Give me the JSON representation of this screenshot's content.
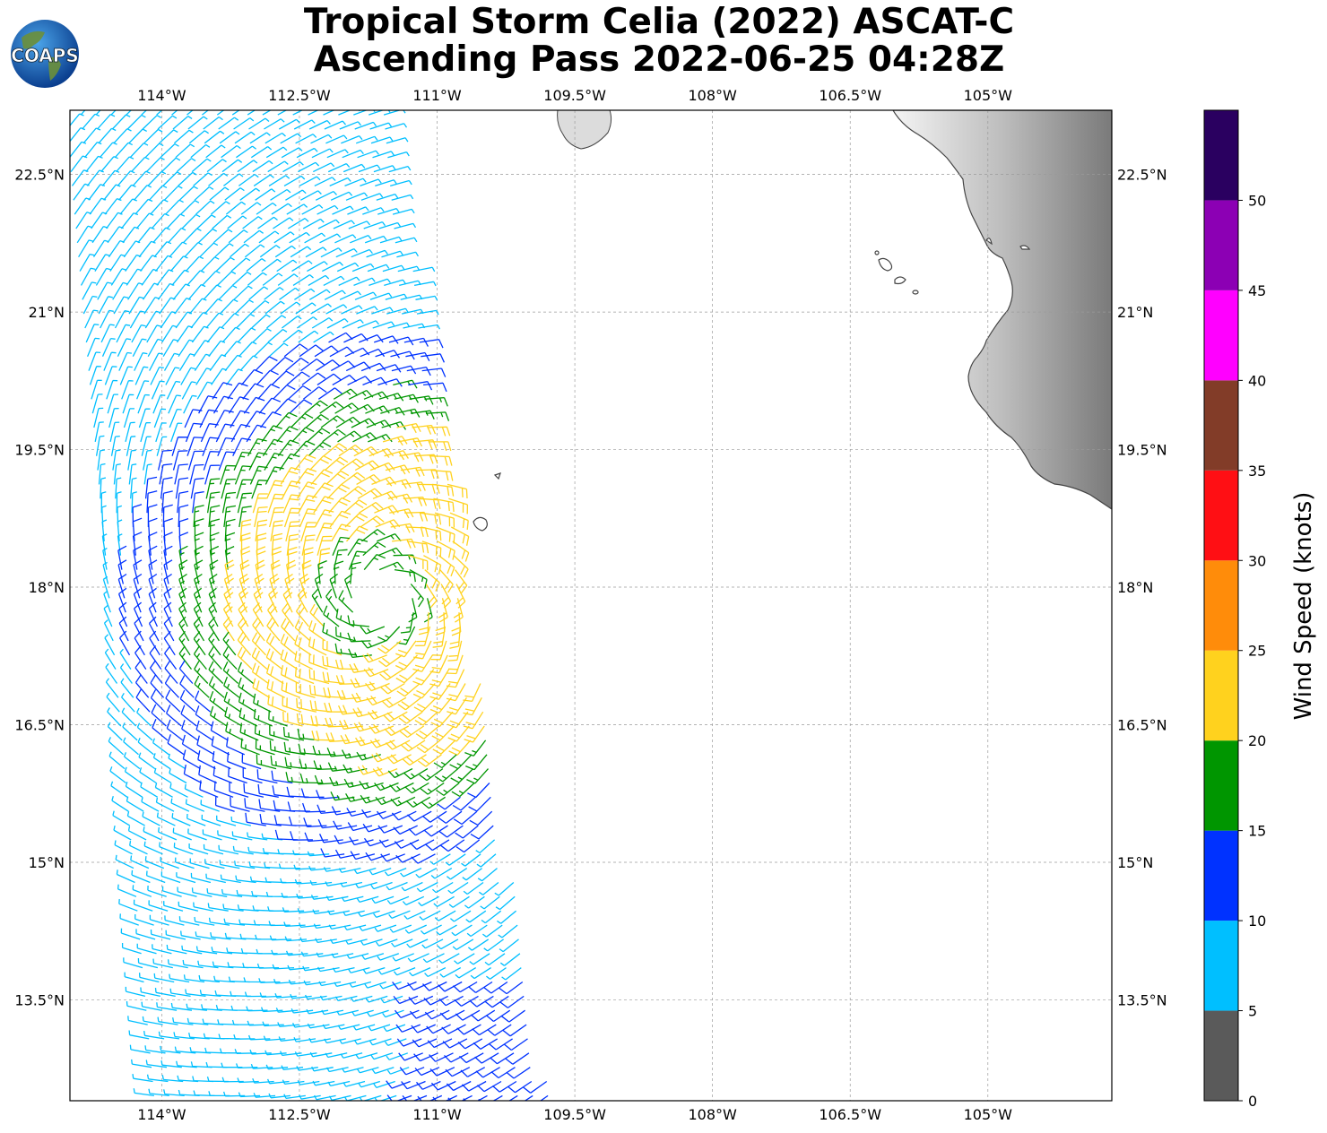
{
  "logo": {
    "text": "COAPS",
    "icon": "globe-icon"
  },
  "title": {
    "line1": "Tropical Storm Celia (2022) ASCAT-C",
    "line2": "Ascending Pass 2022-06-25 04:28Z"
  },
  "map": {
    "extent": {
      "lon_min": -115.0,
      "lon_max": -103.65,
      "lat_min": 12.4,
      "lat_max": 23.2
    },
    "lon_ticks": [
      -114,
      -112.5,
      -111,
      -109.5,
      -108,
      -106.5,
      -105
    ],
    "lon_tick_labels": [
      "114°W",
      "112.5°W",
      "111°W",
      "109.5°W",
      "108°W",
      "106.5°W",
      "105°W"
    ],
    "lat_ticks": [
      22.5,
      21,
      19.5,
      18,
      16.5,
      15,
      13.5
    ],
    "lat_tick_labels": [
      "22.5°N",
      "21°N",
      "19.5°N",
      "18°N",
      "16.5°N",
      "15°N",
      "13.5°N"
    ],
    "gridlines": true,
    "storm_center": {
      "lon": -111.6,
      "lat": 17.9
    }
  },
  "colorbar": {
    "label": "Wind Speed (knots)",
    "ticks": [
      0,
      5,
      10,
      15,
      20,
      25,
      30,
      35,
      40,
      45,
      50
    ],
    "bins": [
      {
        "min": 0,
        "max": 5,
        "color": "#5a5a5a"
      },
      {
        "min": 5,
        "max": 10,
        "color": "#00bfff"
      },
      {
        "min": 10,
        "max": 15,
        "color": "#0032ff"
      },
      {
        "min": 15,
        "max": 20,
        "color": "#009600"
      },
      {
        "min": 20,
        "max": 25,
        "color": "#ffd21e"
      },
      {
        "min": 25,
        "max": 30,
        "color": "#ff8c0a"
      },
      {
        "min": 30,
        "max": 35,
        "color": "#ff0f14"
      },
      {
        "min": 35,
        "max": 40,
        "color": "#823c28"
      },
      {
        "min": 40,
        "max": 45,
        "color": "#ff00ff"
      },
      {
        "min": 45,
        "max": 50,
        "color": "#8c00b4"
      },
      {
        "min": 50,
        "max": 55,
        "color": "#2a0060"
      }
    ]
  }
}
